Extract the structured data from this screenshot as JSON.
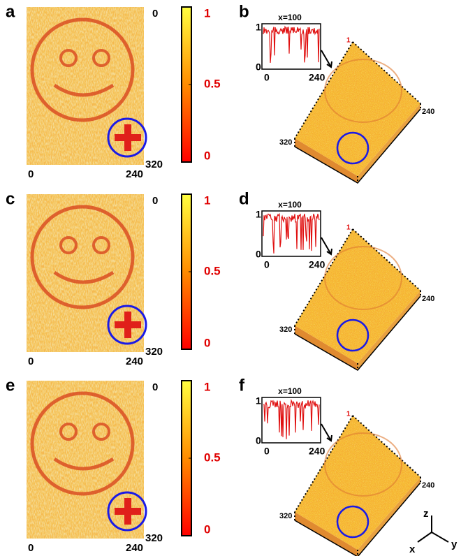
{
  "rows": [
    {
      "left": {
        "label": "a",
        "x_ticks": [
          "0",
          "240"
        ],
        "y_ticks": [
          "0",
          "320"
        ],
        "colorbar_ticks": [
          1,
          0.5,
          0
        ]
      },
      "right": {
        "label": "b",
        "inset_title": "x=100",
        "inset_y_ticks": [
          "1",
          "0"
        ],
        "inset_x_ticks": [
          "0",
          "240"
        ],
        "surface_ticks": {
          "z": "1",
          "y": "240",
          "x": "320"
        }
      }
    },
    {
      "left": {
        "label": "c",
        "x_ticks": [
          "0",
          "240"
        ],
        "y_ticks": [
          "0",
          "320"
        ],
        "colorbar_ticks": [
          1,
          0.5,
          0
        ]
      },
      "right": {
        "label": "d",
        "inset_title": "x=100",
        "inset_y_ticks": [
          "1",
          "0"
        ],
        "inset_x_ticks": [
          "0",
          "240"
        ],
        "surface_ticks": {
          "z": "1",
          "y": "240",
          "x": "320"
        }
      }
    },
    {
      "left": {
        "label": "e",
        "x_ticks": [
          "0",
          "240"
        ],
        "y_ticks": [
          "0",
          "320"
        ],
        "colorbar_ticks": [
          1,
          0.5,
          0
        ]
      },
      "right": {
        "label": "f",
        "inset_title": "x=100",
        "inset_y_ticks": [
          "1",
          "0"
        ],
        "inset_x_ticks": [
          "0",
          "240"
        ],
        "surface_ticks": {
          "z": "1",
          "y": "240",
          "x": "320"
        }
      }
    }
  ],
  "axes_key": {
    "z": "z",
    "x": "x",
    "y": "y"
  }
}
